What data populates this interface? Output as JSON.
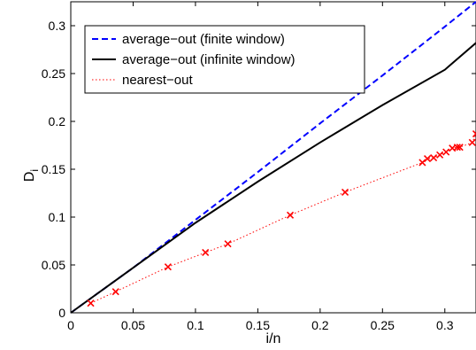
{
  "chart_data": {
    "type": "line",
    "xlabel": "i/n",
    "ylabel_main": "D",
    "ylabel_sub": "i",
    "xlim": [
      0,
      0.325
    ],
    "ylim": [
      0,
      0.325
    ],
    "xticks": [
      0,
      0.05,
      0.1,
      0.15,
      0.2,
      0.25,
      0.3
    ],
    "yticks": [
      0,
      0.05,
      0.1,
      0.15,
      0.2,
      0.25,
      0.3
    ],
    "xtick_labels": [
      "0",
      "0.05",
      "0.1",
      "0.15",
      "0.2",
      "0.25",
      "0.3"
    ],
    "ytick_labels": [
      "0",
      "0.05",
      "0.1",
      "0.15",
      "0.2",
      "0.25",
      "0.3"
    ],
    "grid": false,
    "legend_position": "top-left",
    "series": [
      {
        "name": "average−out (finite window)",
        "style": "dashed",
        "color": "#0000ff",
        "x": [
          0,
          0.05,
          0.1,
          0.15,
          0.2,
          0.25,
          0.3,
          0.325
        ],
        "y": [
          0,
          0.047,
          0.097,
          0.147,
          0.198,
          0.248,
          0.299,
          0.325
        ]
      },
      {
        "name": "average−out (infinite window)",
        "style": "solid",
        "color": "#000000",
        "x": [
          0,
          0.05,
          0.1,
          0.15,
          0.2,
          0.25,
          0.3,
          0.325
        ],
        "y": [
          0,
          0.047,
          0.094,
          0.137,
          0.178,
          0.217,
          0.254,
          0.282
        ]
      },
      {
        "name": "nearest−out",
        "style": "dotted",
        "color": "#ff0000",
        "marker": "x",
        "x": [
          0.016,
          0.036,
          0.078,
          0.108,
          0.126,
          0.176,
          0.22,
          0.282,
          0.286,
          0.291,
          0.296,
          0.301,
          0.306,
          0.31,
          0.312,
          0.322,
          0.325
        ],
        "y": [
          0.01,
          0.022,
          0.048,
          0.063,
          0.072,
          0.102,
          0.126,
          0.157,
          0.161,
          0.162,
          0.165,
          0.168,
          0.172,
          0.173,
          0.173,
          0.178,
          0.187
        ]
      }
    ]
  }
}
